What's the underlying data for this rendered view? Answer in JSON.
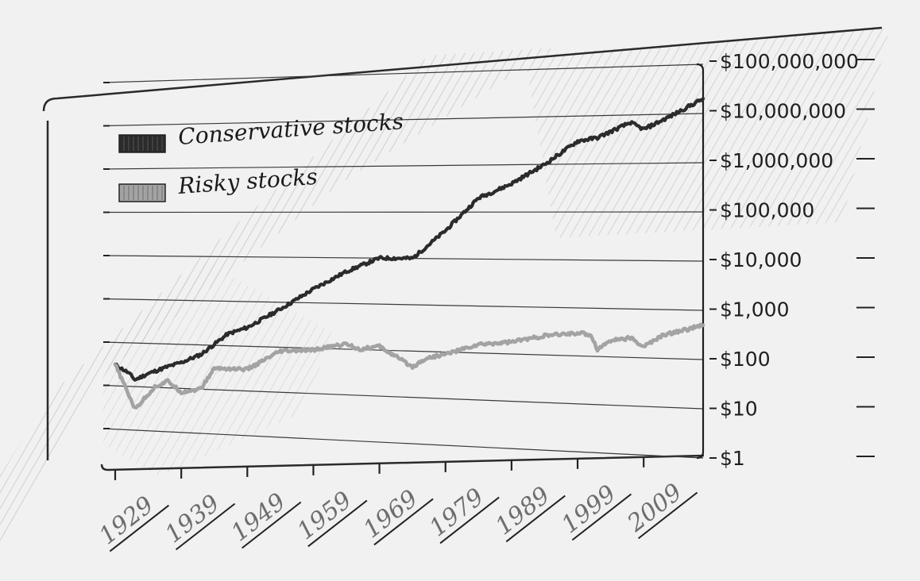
{
  "chart_data": {
    "type": "line",
    "title": "",
    "xlabel": "",
    "ylabel": "",
    "y_scale": "log",
    "ylim": [
      1,
      100000000
    ],
    "xlim": [
      1929,
      2018
    ],
    "grid": true,
    "legend_position": "top-left",
    "x_ticks": [
      "1929",
      "1939",
      "1949",
      "1959",
      "1969",
      "1979",
      "1989",
      "1999",
      "2009"
    ],
    "y_ticks": [
      "$1",
      "$10",
      "$100",
      "$1,000",
      "$10,000",
      "$100,000",
      "$1,000,000",
      "$10,000,000",
      "$100,000,000"
    ],
    "series": [
      {
        "name": "Conservative stocks",
        "color": "#2b2b2b",
        "x": [
          1929,
          1931,
          1932,
          1934,
          1937,
          1939,
          1942,
          1946,
          1949,
          1954,
          1959,
          1964,
          1969,
          1974,
          1979,
          1984,
          1987,
          1989,
          1994,
          1999,
          2002,
          2007,
          2009,
          2013,
          2018
        ],
        "y": [
          30,
          20,
          14,
          20,
          30,
          38,
          60,
          180,
          260,
          700,
          2000,
          5000,
          10000,
          10000,
          40000,
          200000,
          300000,
          400000,
          1000000,
          3000000,
          3500000,
          7000000,
          5000000,
          9000000,
          20000000
        ]
      },
      {
        "name": "Risky stocks",
        "color": "#a3a3a3",
        "x": [
          1929,
          1930,
          1932,
          1935,
          1937,
          1939,
          1942,
          1944,
          1946,
          1949,
          1954,
          1959,
          1964,
          1966,
          1969,
          1974,
          1976,
          1979,
          1984,
          1989,
          1994,
          1999,
          2001,
          2002,
          2004,
          2007,
          2009,
          2012,
          2018
        ],
        "y": [
          30,
          14,
          3,
          10,
          14,
          8,
          10,
          30,
          30,
          30,
          80,
          90,
          130,
          100,
          120,
          45,
          70,
          90,
          150,
          180,
          250,
          300,
          280,
          140,
          220,
          250,
          170,
          300,
          500
        ]
      }
    ]
  }
}
